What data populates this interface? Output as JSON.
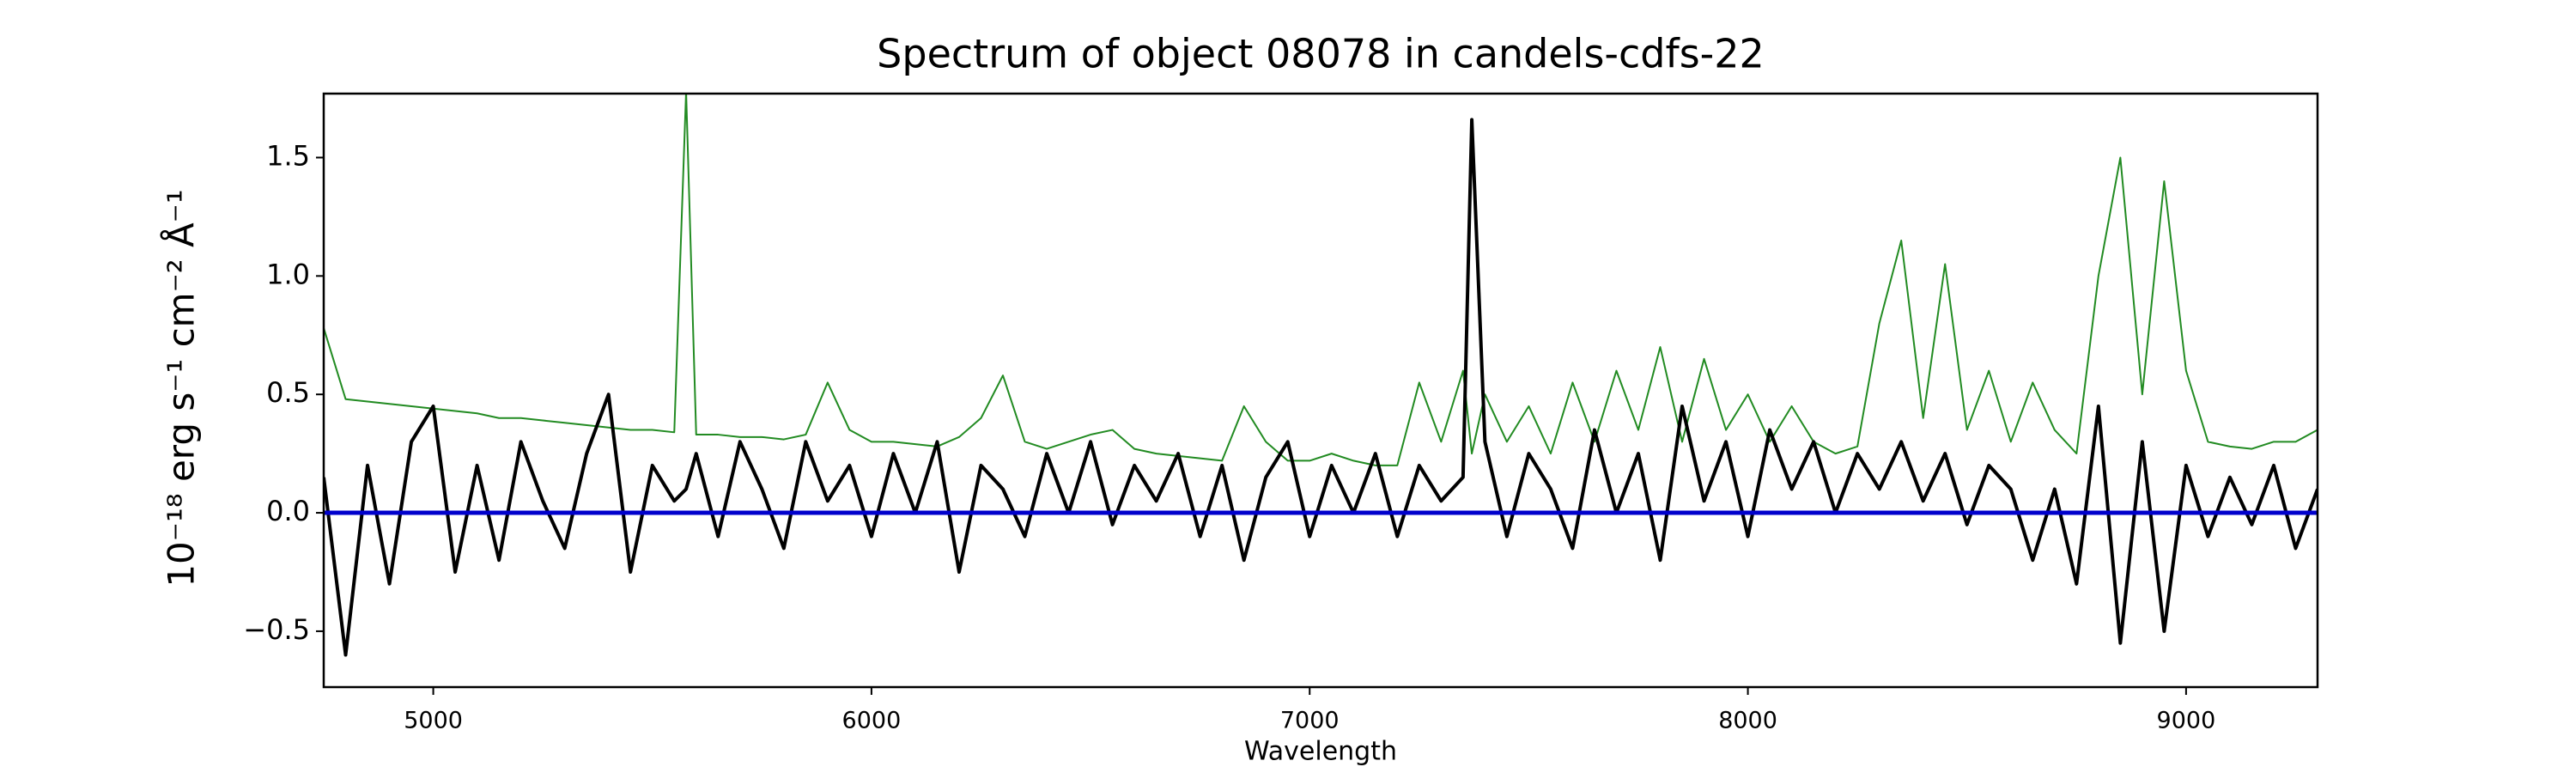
{
  "chart_data": {
    "type": "line",
    "title": "Spectrum of object 08078 in candels-cdfs-22",
    "x_label": "Wavelength",
    "y_label": "10⁻¹⁸ erg s⁻¹ cm⁻² Å⁻¹",
    "x": [
      4750,
      4800,
      4850,
      4900,
      4950,
      5000,
      5050,
      5100,
      5150,
      5200,
      5250,
      5300,
      5350,
      5400,
      5450,
      5500,
      5550,
      5577,
      5600,
      5650,
      5700,
      5750,
      5800,
      5850,
      5900,
      5950,
      6000,
      6050,
      6100,
      6150,
      6200,
      6250,
      6300,
      6350,
      6400,
      6450,
      6500,
      6550,
      6600,
      6650,
      6700,
      6750,
      6800,
      6850,
      6900,
      6950,
      7000,
      7050,
      7100,
      7150,
      7200,
      7250,
      7300,
      7350,
      7370,
      7400,
      7450,
      7500,
      7550,
      7600,
      7650,
      7700,
      7750,
      7800,
      7850,
      7900,
      7950,
      8000,
      8050,
      8100,
      8150,
      8200,
      8250,
      8300,
      8350,
      8400,
      8450,
      8500,
      8550,
      8600,
      8650,
      8700,
      8750,
      8800,
      8850,
      8900,
      8950,
      9000,
      9050,
      9100,
      9150,
      9200,
      9250,
      9300
    ],
    "series": [
      {
        "color": "#228b22",
        "width": 2,
        "values": [
          0.78,
          0.48,
          0.47,
          0.46,
          0.45,
          0.44,
          0.43,
          0.42,
          0.4,
          0.4,
          0.39,
          0.38,
          0.37,
          0.36,
          0.35,
          0.35,
          0.34,
          1.78,
          0.33,
          0.33,
          0.32,
          0.32,
          0.31,
          0.33,
          0.55,
          0.35,
          0.3,
          0.3,
          0.29,
          0.28,
          0.32,
          0.4,
          0.58,
          0.3,
          0.27,
          0.3,
          0.33,
          0.35,
          0.27,
          0.25,
          0.24,
          0.23,
          0.22,
          0.45,
          0.3,
          0.22,
          0.22,
          0.25,
          0.22,
          0.2,
          0.2,
          0.55,
          0.3,
          0.6,
          0.25,
          0.5,
          0.3,
          0.45,
          0.25,
          0.55,
          0.3,
          0.6,
          0.35,
          0.7,
          0.3,
          0.65,
          0.35,
          0.5,
          0.3,
          0.45,
          0.3,
          0.25,
          0.28,
          0.8,
          1.15,
          0.4,
          1.05,
          0.35,
          0.6,
          0.3,
          0.55,
          0.35,
          0.25,
          1.0,
          1.5,
          0.5,
          1.4,
          0.6,
          0.3,
          0.28,
          0.27,
          0.3,
          0.3,
          0.35
        ]
      },
      {
        "color": "#000000",
        "width": 4,
        "values": [
          0.15,
          -0.6,
          0.2,
          -0.3,
          0.3,
          0.45,
          -0.25,
          0.2,
          -0.2,
          0.3,
          0.05,
          -0.15,
          0.25,
          0.5,
          -0.25,
          0.2,
          0.05,
          0.1,
          0.25,
          -0.1,
          0.3,
          0.1,
          -0.15,
          0.3,
          0.05,
          0.2,
          -0.1,
          0.25,
          0.0,
          0.3,
          -0.25,
          0.2,
          0.1,
          -0.1,
          0.25,
          0.0,
          0.3,
          -0.05,
          0.2,
          0.05,
          0.25,
          -0.1,
          0.2,
          -0.2,
          0.15,
          0.3,
          -0.1,
          0.2,
          0.0,
          0.25,
          -0.1,
          0.2,
          0.05,
          0.15,
          1.66,
          0.3,
          -0.1,
          0.25,
          0.1,
          -0.15,
          0.35,
          0.0,
          0.25,
          -0.2,
          0.45,
          0.05,
          0.3,
          -0.1,
          0.35,
          0.1,
          0.3,
          0.0,
          0.25,
          0.1,
          0.3,
          0.05,
          0.25,
          -0.05,
          0.2,
          0.1,
          -0.2,
          0.1,
          -0.3,
          0.45,
          -0.55,
          0.3,
          -0.5,
          0.2,
          -0.1,
          0.15,
          -0.05,
          0.2,
          -0.15,
          0.1
        ]
      },
      {
        "color": "#0000cc",
        "width": 5,
        "values": [
          0,
          0,
          0,
          0,
          0,
          0,
          0,
          0,
          0,
          0,
          0,
          0,
          0,
          0,
          0,
          0,
          0,
          0,
          0,
          0,
          0,
          0,
          0,
          0,
          0,
          0,
          0,
          0,
          0,
          0,
          0,
          0,
          0,
          0,
          0,
          0,
          0,
          0,
          0,
          0,
          0,
          0,
          0,
          0,
          0,
          0,
          0,
          0,
          0,
          0,
          0,
          0,
          0,
          0,
          0,
          0,
          0,
          0,
          0,
          0,
          0,
          0,
          0,
          0,
          0,
          0,
          0,
          0,
          0,
          0,
          0,
          0,
          0,
          0,
          0,
          0,
          0,
          0,
          0,
          0,
          0,
          0,
          0,
          0,
          0,
          0,
          0,
          0,
          0,
          0,
          0,
          0,
          0,
          0
        ]
      }
    ],
    "xlim": [
      4750,
      9300
    ],
    "ylim": [
      -0.736,
      1.77
    ],
    "xticks": [
      5000,
      6000,
      7000,
      8000,
      9000
    ],
    "yticks": [
      {
        "value": -0.5,
        "label": "−0.5"
      },
      {
        "value": 0,
        "label": "0.0"
      },
      0.5,
      {
        "value": 1,
        "label": "1.0"
      },
      1.5
    ],
    "grid": false
  }
}
